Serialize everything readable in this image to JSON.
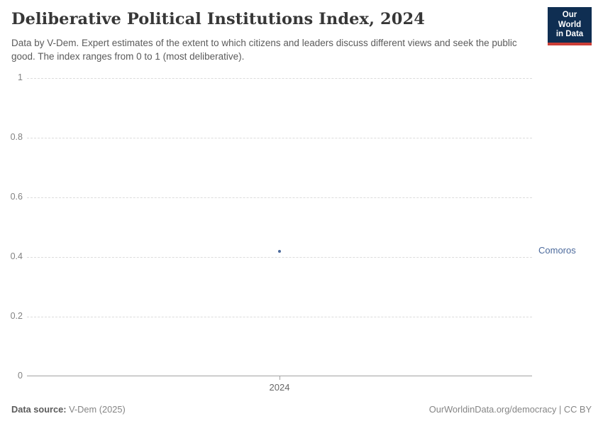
{
  "header": {
    "title": "Deliberative Political Institutions Index, 2024",
    "subtitle": "Data by V-Dem. Expert estimates of the extent to which citizens and leaders discuss different views and seek the public good. The index ranges from 0 to 1 (most deliberative).",
    "logo": {
      "line1": "Our World",
      "line2": "in Data",
      "bg_color": "#0f2e52",
      "bar_color": "#cc3e36"
    }
  },
  "chart_data": {
    "type": "scatter",
    "title": "Deliberative Political Institutions Index, 2024",
    "x": [
      2024
    ],
    "xtick_labels": [
      "2024"
    ],
    "series": [
      {
        "name": "Comoros",
        "values": [
          0.42
        ],
        "color": "#4c6a9c"
      }
    ],
    "xlabel": "",
    "ylabel": "",
    "ylim": [
      0,
      1
    ],
    "yticks": [
      0,
      0.2,
      0.4,
      0.6,
      0.8,
      1
    ],
    "ytick_labels": [
      "0",
      "0.2",
      "0.4",
      "0.6",
      "0.8",
      "1"
    ],
    "grid": "horizontal-dashed",
    "entity_label": "Comoros",
    "entity_label_position": "right"
  },
  "footer": {
    "source_label": "Data source:",
    "source_value": " V-Dem (2025)",
    "credit": "OurWorldinData.org/democracy | CC BY"
  }
}
